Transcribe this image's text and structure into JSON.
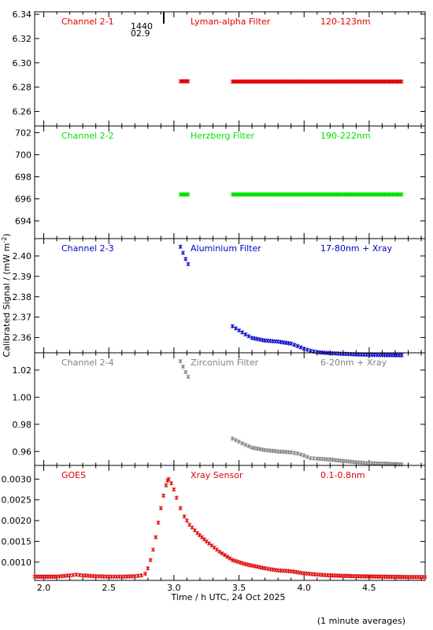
{
  "figure": {
    "x_axis_label": "Time / h UTC, 24 Oct 2025",
    "y_axis_label": "Calibrated Signal / (mW m",
    "y_axis_label_exp": "-2",
    "y_axis_label_end": ")",
    "footnote": "(1 minute averages)",
    "marker_readout": "1440",
    "marker_readout_2": "02.9"
  },
  "chart_data": [
    {
      "type": "scatter",
      "channel_label": "Channel 2-1",
      "filter_label": "Lyman-alpha Filter",
      "band_label": "120-123nm",
      "color": "#e00000",
      "xlim": [
        1.93,
        4.93
      ],
      "ylim": [
        6.248,
        6.342
      ],
      "yticks": [
        6.26,
        6.28,
        6.3,
        6.32,
        6.34
      ],
      "ytick_labels": [
        "6.26",
        "6.28",
        "6.30",
        "6.32",
        "6.34"
      ],
      "segments": [
        {
          "x0": 3.05,
          "x1": 3.11,
          "y0": 6.2848,
          "y1": 6.2848
        },
        {
          "x0": 3.45,
          "x1": 4.75,
          "y0": 6.2846,
          "y1": 6.2846
        }
      ]
    },
    {
      "type": "scatter",
      "channel_label": "Channel 2-2",
      "filter_label": "Herzberg Filter",
      "band_label": "190-222nm",
      "color": "#00e000",
      "xlim": [
        1.93,
        4.93
      ],
      "ylim": [
        692.4,
        702.6
      ],
      "yticks": [
        694,
        696,
        698,
        700,
        702
      ],
      "ytick_labels": [
        "694",
        "696",
        "698",
        "700",
        "702"
      ],
      "segments": [
        {
          "x0": 3.05,
          "x1": 3.11,
          "y0": 696.4,
          "y1": 696.4
        },
        {
          "x0": 3.45,
          "x1": 4.75,
          "y0": 696.4,
          "y1": 696.4
        }
      ]
    },
    {
      "type": "scatter",
      "channel_label": "Channel 2-3",
      "filter_label": "Aluminium Filter",
      "band_label": "17-80nm + Xray",
      "color": "#0000c8",
      "xlim": [
        1.93,
        4.93
      ],
      "ylim": [
        2.3525,
        2.4085
      ],
      "yticks": [
        2.36,
        2.37,
        2.38,
        2.39,
        2.4
      ],
      "ytick_labels": [
        "2.36",
        "2.37",
        "2.38",
        "2.39",
        "2.40"
      ],
      "series_x": [
        3.05,
        3.07,
        3.09,
        3.11,
        3.45,
        3.5,
        3.55,
        3.6,
        3.7,
        3.8,
        3.9,
        3.95,
        4.0,
        4.05,
        4.1,
        4.2,
        4.3,
        4.4,
        4.5,
        4.6,
        4.75
      ],
      "series_y": [
        2.4045,
        2.4015,
        2.3985,
        2.396,
        2.3655,
        2.3635,
        2.3615,
        2.3598,
        2.3585,
        2.358,
        2.357,
        2.3558,
        2.3545,
        2.3535,
        2.3528,
        2.3523,
        2.352,
        2.3517,
        2.3515,
        2.3514,
        2.3513
      ]
    },
    {
      "type": "scatter",
      "channel_label": "Channel 2-4",
      "filter_label": "Zirconium Filter",
      "band_label": "6-20nm + Xray",
      "color": "#808080",
      "xlim": [
        1.93,
        4.93
      ],
      "ylim": [
        0.9497,
        1.0327
      ],
      "yticks": [
        0.96,
        0.98,
        1.0,
        1.02
      ],
      "ytick_labels": [
        "0.96",
        "0.98",
        "1.00",
        "1.02"
      ],
      "series_x": [
        3.05,
        3.07,
        3.09,
        3.11,
        3.45,
        3.5,
        3.55,
        3.6,
        3.7,
        3.8,
        3.9,
        3.95,
        4.0,
        4.05,
        4.1,
        4.2,
        4.3,
        4.4,
        4.5,
        4.6,
        4.75
      ],
      "series_y": [
        1.0265,
        1.0225,
        1.0185,
        1.015,
        0.9695,
        0.9672,
        0.9648,
        0.9628,
        0.961,
        0.96,
        0.9593,
        0.9585,
        0.957,
        0.955,
        0.9547,
        0.954,
        0.953,
        0.952,
        0.9513,
        0.951,
        0.9505
      ]
    },
    {
      "type": "scatter",
      "channel_label": "GOES",
      "filter_label": "Xray Sensor",
      "band_label": "0.1-0.8nm",
      "color": "#e00000",
      "xlim": [
        1.93,
        4.93
      ],
      "ylim": [
        0.00056,
        0.00333
      ],
      "yticks": [
        0.001,
        0.0015,
        0.002,
        0.0025,
        0.003
      ],
      "ytick_labels": [
        "0.0010",
        "0.0015",
        "0.0020",
        "0.0025",
        "0.0030"
      ],
      "xticks": [
        2.0,
        2.5,
        3.0,
        3.5,
        4.0,
        4.5
      ],
      "xtick_labels": [
        "2.0",
        "2.5",
        "3.0",
        "3.5",
        "4.0",
        "4.5"
      ],
      "series_x": [
        1.93,
        2.1,
        2.2,
        2.25,
        2.3,
        2.4,
        2.5,
        2.6,
        2.7,
        2.75,
        2.78,
        2.8,
        2.82,
        2.84,
        2.86,
        2.88,
        2.9,
        2.92,
        2.94,
        2.95,
        2.96,
        2.98,
        3.0,
        3.02,
        3.05,
        3.08,
        3.12,
        3.18,
        3.25,
        3.35,
        3.45,
        3.55,
        3.7,
        3.8,
        3.9,
        4.0,
        4.1,
        4.2,
        4.4,
        4.6,
        4.8,
        4.93
      ],
      "series_y": [
        0.00065,
        0.00065,
        0.00068,
        0.0007,
        0.00068,
        0.00066,
        0.00065,
        0.00065,
        0.00066,
        0.00068,
        0.00072,
        0.00085,
        0.00105,
        0.0013,
        0.0016,
        0.00195,
        0.0023,
        0.0026,
        0.00285,
        0.00296,
        0.003,
        0.0029,
        0.00275,
        0.00255,
        0.0023,
        0.0021,
        0.0019,
        0.0017,
        0.0015,
        0.00125,
        0.00105,
        0.00095,
        0.00085,
        0.0008,
        0.00078,
        0.00073,
        0.0007,
        0.00068,
        0.00066,
        0.00065,
        0.00064,
        0.00064
      ]
    }
  ]
}
